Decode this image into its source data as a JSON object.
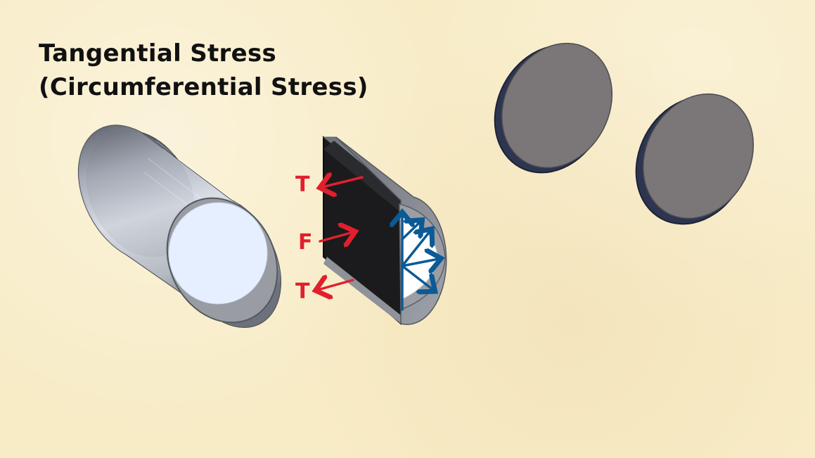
{
  "slide": {
    "title_line1": "Tangential Stress",
    "title_line2": "(Circumferential Stress)"
  },
  "annotations": {
    "tension_top": "T",
    "force": "F",
    "tension_bottom": "T"
  },
  "colors": {
    "background": "#f8ecc7",
    "annotation_red": "#e0202e",
    "pressure_blue": "#0b5a96",
    "shell_gray": "#8d8f96",
    "disc_gray": "#7a7576"
  }
}
